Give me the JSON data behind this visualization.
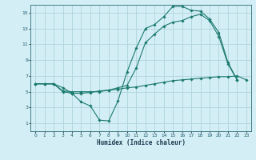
{
  "title": "",
  "xlabel": "Humidex (Indice chaleur)",
  "ylabel": "",
  "bg_color": "#d4eef5",
  "grid_color": "#aed4dc",
  "line_color": "#1a7a6e",
  "xlim": [
    -0.5,
    23.5
  ],
  "ylim": [
    0,
    16
  ],
  "xtick_labels": [
    "0",
    "1",
    "2",
    "3",
    "4",
    "5",
    "6",
    "7",
    "8",
    "9",
    "10",
    "11",
    "12",
    "13",
    "14",
    "15",
    "16",
    "17",
    "18",
    "19",
    "20",
    "21",
    "22",
    "23"
  ],
  "yticks": [
    1,
    3,
    5,
    7,
    9,
    11,
    13,
    15
  ],
  "line1_x": [
    0,
    1,
    2,
    3,
    4,
    5,
    6,
    7,
    8,
    9,
    10,
    11,
    12,
    13,
    14,
    15,
    16,
    17,
    18,
    19,
    20,
    21,
    22,
    23
  ],
  "line1_y": [
    6.0,
    6.0,
    6.0,
    5.0,
    4.8,
    4.8,
    4.9,
    5.1,
    5.2,
    5.3,
    5.5,
    5.6,
    5.8,
    6.0,
    6.2,
    6.4,
    6.5,
    6.6,
    6.7,
    6.8,
    6.9,
    6.9,
    7.0,
    6.5
  ],
  "line2_x": [
    0,
    1,
    2,
    3,
    4,
    5,
    6,
    7,
    8,
    9,
    10,
    11,
    12,
    13,
    14,
    15,
    16,
    17,
    18,
    19,
    20,
    21,
    22
  ],
  "line2_y": [
    6.0,
    6.0,
    6.0,
    5.5,
    4.8,
    3.7,
    3.2,
    1.4,
    1.3,
    3.8,
    7.5,
    10.5,
    13.0,
    13.5,
    14.5,
    15.8,
    15.8,
    15.3,
    15.2,
    14.2,
    12.5,
    8.7,
    6.5
  ],
  "line3_x": [
    0,
    1,
    2,
    3,
    4,
    5,
    6,
    7,
    8,
    9,
    10,
    11,
    12,
    13,
    14,
    15,
    16,
    17,
    18,
    19,
    20,
    21,
    22
  ],
  "line3_y": [
    6.0,
    6.0,
    6.0,
    5.1,
    5.0,
    5.0,
    5.0,
    5.0,
    5.2,
    5.5,
    5.8,
    8.0,
    11.2,
    12.3,
    13.3,
    13.8,
    14.0,
    14.5,
    14.8,
    14.0,
    12.0,
    8.5,
    6.5
  ]
}
